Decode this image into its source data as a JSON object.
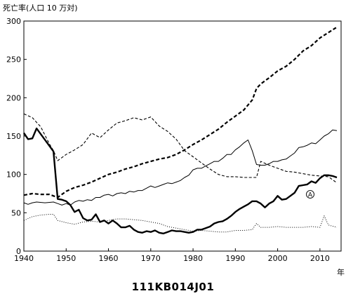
{
  "caption": "111KB014J01",
  "chart_data": {
    "type": "line",
    "ylabel": "死亡率(人口 10 万対)",
    "xlabel": "年",
    "xlim": [
      1940,
      2015
    ],
    "ylim": [
      0,
      300
    ],
    "x_ticks": [
      1940,
      1950,
      1960,
      1970,
      1980,
      1990,
      2000,
      2010
    ],
    "y_ticks": [
      0,
      50,
      100,
      150,
      200,
      250,
      300
    ],
    "grid": false,
    "annotation": "Ⓐ",
    "series": [
      {
        "style": "thick-solid",
        "points": [
          [
            1940,
            154
          ],
          [
            1941,
            146
          ],
          [
            1942,
            147
          ],
          [
            1943,
            160
          ],
          [
            1947,
            130
          ],
          [
            1948,
            68
          ],
          [
            1949,
            67
          ],
          [
            1950,
            65
          ],
          [
            1951,
            60
          ],
          [
            1952,
            51
          ],
          [
            1953,
            54
          ],
          [
            1954,
            43
          ],
          [
            1955,
            40
          ],
          [
            1956,
            41
          ],
          [
            1957,
            48
          ],
          [
            1958,
            38
          ],
          [
            1959,
            40
          ],
          [
            1960,
            36
          ],
          [
            1961,
            40
          ],
          [
            1962,
            36
          ],
          [
            1963,
            31
          ],
          [
            1964,
            31
          ],
          [
            1965,
            33
          ],
          [
            1966,
            28
          ],
          [
            1967,
            25
          ],
          [
            1968,
            24
          ],
          [
            1969,
            26
          ],
          [
            1970,
            25
          ],
          [
            1971,
            27
          ],
          [
            1972,
            24
          ],
          [
            1973,
            23
          ],
          [
            1974,
            25
          ],
          [
            1975,
            27
          ],
          [
            1976,
            26
          ],
          [
            1977,
            26
          ],
          [
            1978,
            25
          ],
          [
            1979,
            24
          ],
          [
            1980,
            25
          ],
          [
            1981,
            28
          ],
          [
            1982,
            28
          ],
          [
            1983,
            30
          ],
          [
            1984,
            32
          ],
          [
            1985,
            36
          ],
          [
            1986,
            38
          ],
          [
            1987,
            39
          ],
          [
            1988,
            42
          ],
          [
            1989,
            46
          ],
          [
            1990,
            51
          ],
          [
            1991,
            55
          ],
          [
            1992,
            58
          ],
          [
            1993,
            61
          ],
          [
            1994,
            65
          ],
          [
            1995,
            65
          ],
          [
            1996,
            62
          ],
          [
            1997,
            57
          ],
          [
            1998,
            62
          ],
          [
            1999,
            65
          ],
          [
            2000,
            72
          ],
          [
            2001,
            67
          ],
          [
            2002,
            68
          ],
          [
            2003,
            72
          ],
          [
            2004,
            76
          ],
          [
            2005,
            85
          ],
          [
            2006,
            86
          ],
          [
            2007,
            87
          ],
          [
            2008,
            91
          ],
          [
            2009,
            89
          ],
          [
            2010,
            95
          ],
          [
            2011,
            99
          ],
          [
            2012,
            99
          ],
          [
            2013,
            98
          ],
          [
            2014,
            96
          ]
        ]
      },
      {
        "style": "thin-solid",
        "points": [
          [
            1940,
            63
          ],
          [
            1941,
            61
          ],
          [
            1942,
            63
          ],
          [
            1943,
            64
          ],
          [
            1945,
            63
          ],
          [
            1947,
            64
          ],
          [
            1948,
            62
          ],
          [
            1949,
            60
          ],
          [
            1950,
            62
          ],
          [
            1951,
            60
          ],
          [
            1952,
            64
          ],
          [
            1953,
            66
          ],
          [
            1954,
            65
          ],
          [
            1955,
            67
          ],
          [
            1956,
            66
          ],
          [
            1957,
            70
          ],
          [
            1958,
            70
          ],
          [
            1959,
            73
          ],
          [
            1960,
            74
          ],
          [
            1961,
            72
          ],
          [
            1962,
            75
          ],
          [
            1963,
            76
          ],
          [
            1964,
            75
          ],
          [
            1965,
            78
          ],
          [
            1966,
            77
          ],
          [
            1967,
            79
          ],
          [
            1968,
            79
          ],
          [
            1969,
            82
          ],
          [
            1970,
            85
          ],
          [
            1971,
            83
          ],
          [
            1972,
            85
          ],
          [
            1973,
            87
          ],
          [
            1974,
            89
          ],
          [
            1975,
            88
          ],
          [
            1976,
            90
          ],
          [
            1977,
            92
          ],
          [
            1978,
            96
          ],
          [
            1979,
            99
          ],
          [
            1980,
            106
          ],
          [
            1981,
            108
          ],
          [
            1982,
            108
          ],
          [
            1983,
            111
          ],
          [
            1984,
            114
          ],
          [
            1985,
            117
          ],
          [
            1986,
            117
          ],
          [
            1987,
            121
          ],
          [
            1988,
            126
          ],
          [
            1989,
            126
          ],
          [
            1990,
            132
          ],
          [
            1991,
            136
          ],
          [
            1992,
            141
          ],
          [
            1993,
            145
          ],
          [
            1994,
            131
          ],
          [
            1995,
            113
          ],
          [
            1996,
            112
          ],
          [
            1997,
            112
          ],
          [
            1998,
            114
          ],
          [
            1999,
            117
          ],
          [
            2000,
            117
          ],
          [
            2001,
            119
          ],
          [
            2002,
            120
          ],
          [
            2003,
            124
          ],
          [
            2004,
            128
          ],
          [
            2005,
            135
          ],
          [
            2006,
            136
          ],
          [
            2007,
            138
          ],
          [
            2008,
            141
          ],
          [
            2009,
            140
          ],
          [
            2010,
            145
          ],
          [
            2011,
            150
          ],
          [
            2012,
            153
          ],
          [
            2013,
            158
          ],
          [
            2014,
            157
          ]
        ]
      },
      {
        "style": "thick-dashed",
        "points": [
          [
            1940,
            73
          ],
          [
            1942,
            75
          ],
          [
            1944,
            74
          ],
          [
            1946,
            74
          ],
          [
            1948,
            70
          ],
          [
            1950,
            78
          ],
          [
            1952,
            83
          ],
          [
            1954,
            86
          ],
          [
            1956,
            90
          ],
          [
            1958,
            95
          ],
          [
            1960,
            100
          ],
          [
            1962,
            103
          ],
          [
            1964,
            107
          ],
          [
            1966,
            110
          ],
          [
            1968,
            114
          ],
          [
            1970,
            117
          ],
          [
            1972,
            120
          ],
          [
            1974,
            122
          ],
          [
            1976,
            126
          ],
          [
            1978,
            132
          ],
          [
            1980,
            139
          ],
          [
            1982,
            145
          ],
          [
            1984,
            152
          ],
          [
            1986,
            159
          ],
          [
            1988,
            168
          ],
          [
            1990,
            176
          ],
          [
            1992,
            184
          ],
          [
            1994,
            197
          ],
          [
            1995,
            212
          ],
          [
            1996,
            218
          ],
          [
            1998,
            226
          ],
          [
            2000,
            235
          ],
          [
            2002,
            241
          ],
          [
            2004,
            250
          ],
          [
            2006,
            261
          ],
          [
            2008,
            268
          ],
          [
            2010,
            278
          ],
          [
            2012,
            285
          ],
          [
            2014,
            292
          ]
        ]
      },
      {
        "style": "thin-dashed",
        "points": [
          [
            1940,
            179
          ],
          [
            1942,
            174
          ],
          [
            1944,
            162
          ],
          [
            1946,
            140
          ],
          [
            1947,
            131
          ],
          [
            1948,
            118
          ],
          [
            1950,
            126
          ],
          [
            1952,
            132
          ],
          [
            1954,
            139
          ],
          [
            1956,
            154
          ],
          [
            1958,
            148
          ],
          [
            1960,
            158
          ],
          [
            1962,
            167
          ],
          [
            1964,
            170
          ],
          [
            1966,
            174
          ],
          [
            1968,
            171
          ],
          [
            1970,
            175
          ],
          [
            1972,
            163
          ],
          [
            1974,
            156
          ],
          [
            1976,
            146
          ],
          [
            1978,
            131
          ],
          [
            1980,
            123
          ],
          [
            1982,
            115
          ],
          [
            1984,
            107
          ],
          [
            1986,
            100
          ],
          [
            1988,
            97
          ],
          [
            1990,
            97
          ],
          [
            1992,
            96
          ],
          [
            1994,
            96
          ],
          [
            1995,
            96
          ],
          [
            1996,
            117
          ],
          [
            1998,
            112
          ],
          [
            2000,
            108
          ],
          [
            2002,
            104
          ],
          [
            2004,
            103
          ],
          [
            2006,
            101
          ],
          [
            2008,
            99
          ],
          [
            2010,
            98
          ],
          [
            2012,
            97
          ],
          [
            2014,
            89
          ]
        ]
      },
      {
        "style": "dotted",
        "points": [
          [
            1940,
            40
          ],
          [
            1942,
            45
          ],
          [
            1944,
            47
          ],
          [
            1946,
            48
          ],
          [
            1947,
            48
          ],
          [
            1948,
            40
          ],
          [
            1950,
            37
          ],
          [
            1952,
            35
          ],
          [
            1954,
            38
          ],
          [
            1956,
            39
          ],
          [
            1958,
            38
          ],
          [
            1960,
            40
          ],
          [
            1962,
            42
          ],
          [
            1964,
            42
          ],
          [
            1966,
            41
          ],
          [
            1968,
            40
          ],
          [
            1970,
            38
          ],
          [
            1972,
            36
          ],
          [
            1974,
            32
          ],
          [
            1976,
            30
          ],
          [
            1978,
            28
          ],
          [
            1980,
            26
          ],
          [
            1982,
            27
          ],
          [
            1984,
            26
          ],
          [
            1986,
            25
          ],
          [
            1988,
            25
          ],
          [
            1990,
            27
          ],
          [
            1992,
            27
          ],
          [
            1994,
            28
          ],
          [
            1995,
            36
          ],
          [
            1996,
            31
          ],
          [
            1998,
            31
          ],
          [
            2000,
            32
          ],
          [
            2002,
            31
          ],
          [
            2004,
            31
          ],
          [
            2006,
            31
          ],
          [
            2008,
            32
          ],
          [
            2010,
            31
          ],
          [
            2011,
            46
          ],
          [
            2012,
            34
          ],
          [
            2014,
            31
          ]
        ]
      }
    ]
  }
}
